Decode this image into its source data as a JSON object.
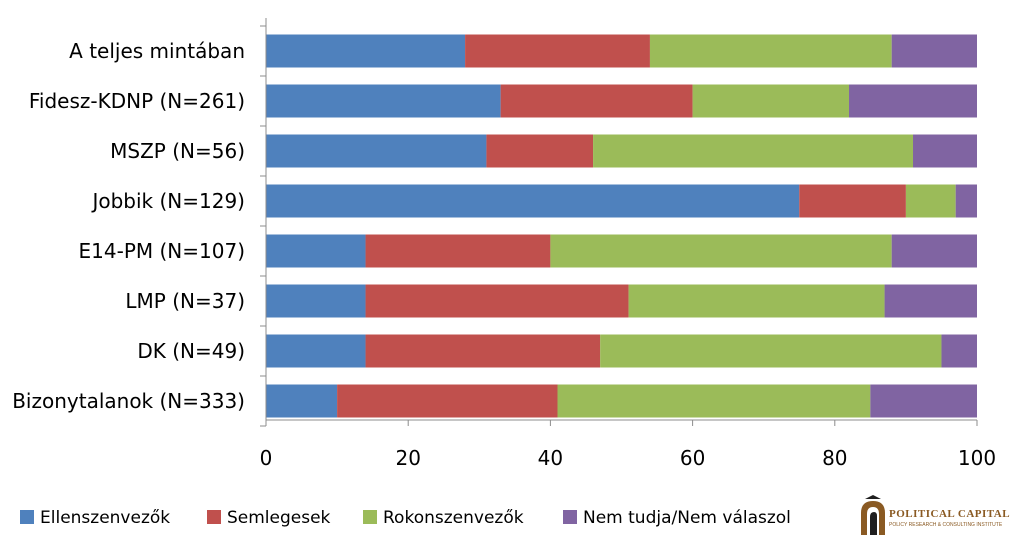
{
  "chart_data": {
    "type": "bar",
    "orientation": "horizontal",
    "stacked": true,
    "categories": [
      "A teljes mintában",
      "Fidesz-KDNP (N=261)",
      "MSZP (N=56)",
      "Jobbik (N=129)",
      "E14-PM (N=107)",
      "LMP (N=37)",
      "DK (N=49)",
      "Bizonytalanok (N=333)"
    ],
    "series": [
      {
        "name": "Ellenszenvezők",
        "color": "#4f81bd",
        "values": [
          28,
          33,
          31,
          75,
          14,
          14,
          14,
          10
        ]
      },
      {
        "name": "Semlegesek",
        "color": "#c0504d",
        "values": [
          26,
          27,
          15,
          15,
          26,
          37,
          33,
          31
        ]
      },
      {
        "name": "Rokonszenvezők",
        "color": "#9bbb59",
        "values": [
          34,
          22,
          45,
          7,
          48,
          36,
          48,
          44
        ]
      },
      {
        "name": "Nem tudja/Nem válaszol",
        "color": "#8064a2",
        "values": [
          12,
          18,
          9,
          3,
          12,
          13,
          5,
          15
        ]
      }
    ],
    "xlim": [
      0,
      100
    ],
    "xticks": [
      "0",
      "20",
      "40",
      "60",
      "80",
      "100"
    ],
    "grid": false,
    "legend_position": "bottom"
  },
  "logo": {
    "title": "POLITICAL CAPITAL",
    "subtitle": "POLICY RESEARCH & CONSULTING INSTITUTE",
    "color": "#8a5a23"
  }
}
